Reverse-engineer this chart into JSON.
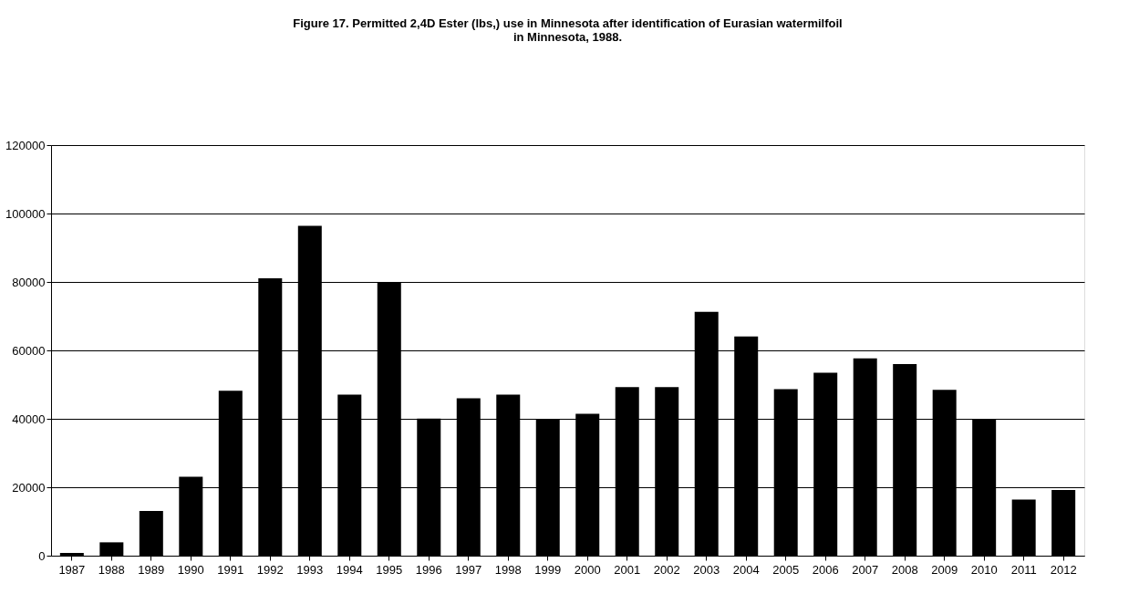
{
  "chart_data": {
    "type": "bar",
    "title": "Figure 17. Permitted 2,4D Ester (lbs,) use in Minnesota after identification of Eurasian watermilfoil\nin Minnesota, 1988.",
    "categories": [
      "1987",
      "1988",
      "1989",
      "1990",
      "1991",
      "1992",
      "1993",
      "1994",
      "1995",
      "1996",
      "1997",
      "1998",
      "1999",
      "2000",
      "2001",
      "2002",
      "2003",
      "2004",
      "2005",
      "2006",
      "2007",
      "2008",
      "2009",
      "2010",
      "2011",
      "2012"
    ],
    "values": [
      800,
      3900,
      13100,
      23100,
      48200,
      81100,
      96400,
      47100,
      80000,
      40100,
      46000,
      47100,
      39800,
      41500,
      49300,
      49300,
      71300,
      64100,
      48700,
      53500,
      57700,
      56000,
      48500,
      39800,
      16400,
      19200
    ],
    "color": "#000000",
    "ylim": [
      0,
      120000
    ],
    "yticks": [
      0,
      20000,
      40000,
      60000,
      80000,
      100000,
      120000
    ],
    "grid": "y"
  }
}
